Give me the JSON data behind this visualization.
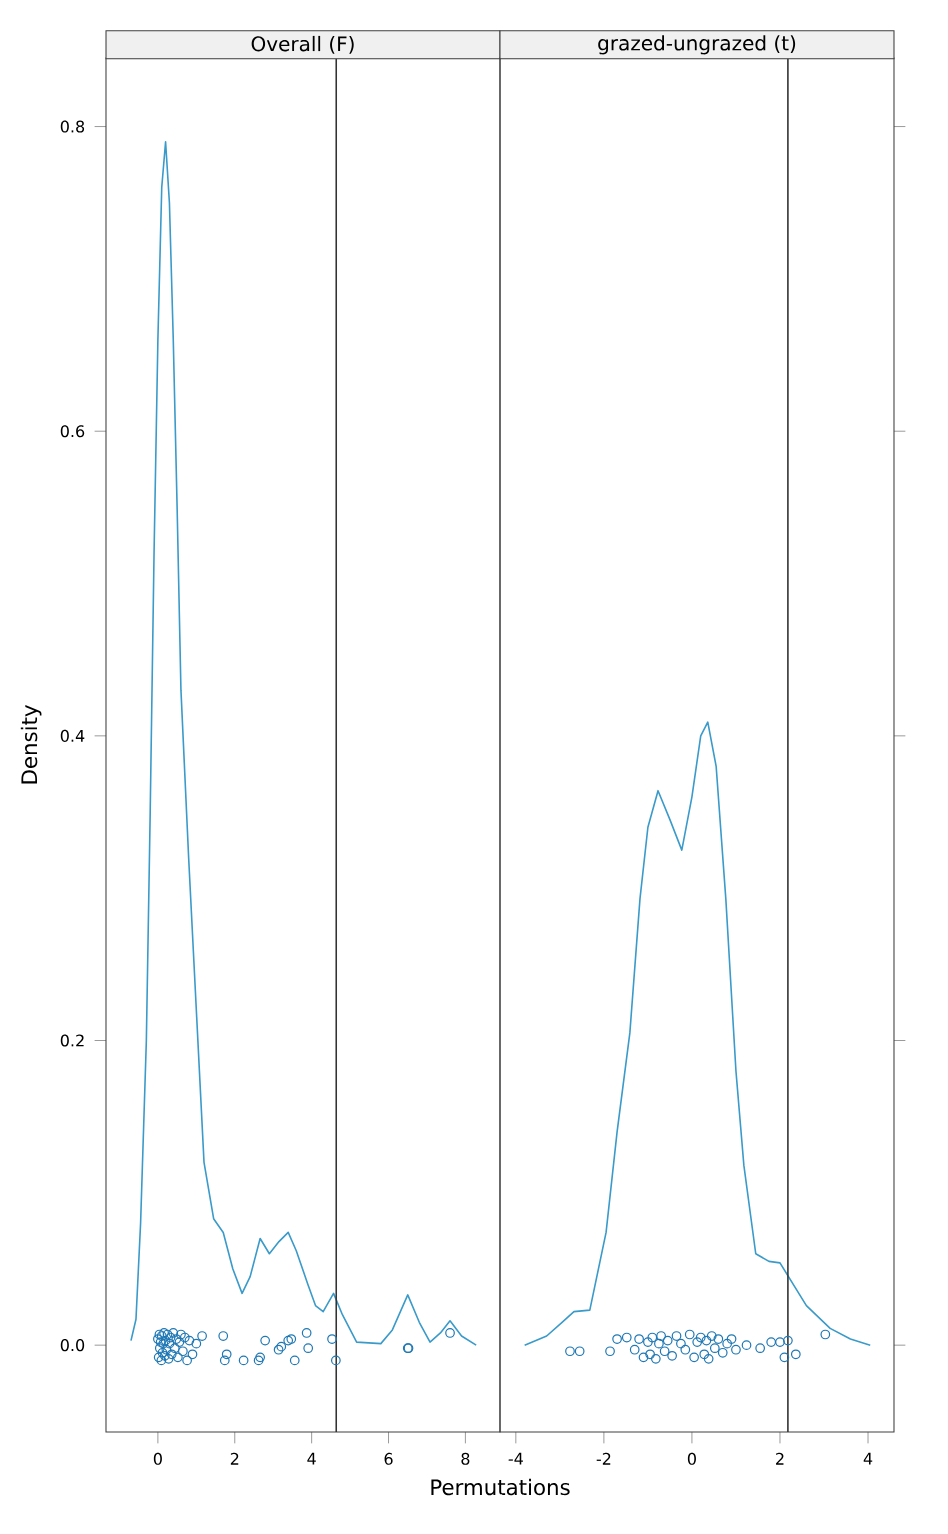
{
  "chart_data": [
    {
      "type": "line",
      "title": "Overall (F)",
      "xlabel": "Permutations",
      "ylabel": "Density",
      "xlim": [
        -1.35,
        8.9
      ],
      "ylim": [
        -0.057,
        0.845
      ],
      "xticks": [
        0,
        2,
        4,
        6,
        8
      ],
      "yticks": [
        {
          "value": 0,
          "label": "0.0"
        },
        {
          "value": 0.2,
          "label": "0.2"
        },
        {
          "value": 0.4,
          "label": "0.4"
        },
        {
          "value": 0.6,
          "label": "0.6"
        },
        {
          "value": 0.8,
          "label": "0.8"
        }
      ],
      "ref_lines": [
        {
          "axis": "x",
          "value": 4.64,
          "color": "#333333"
        }
      ],
      "series": [
        {
          "color": "#3a9ac9",
          "x": [
            -0.7,
            -0.57,
            -0.45,
            -0.3,
            -0.2,
            -0.1,
            0.0,
            0.1,
            0.2,
            0.3,
            0.4,
            0.5,
            0.6,
            0.8,
            1.04,
            1.2,
            1.45,
            1.7,
            1.95,
            2.19,
            2.4,
            2.66,
            2.9,
            3.15,
            3.39,
            3.6,
            3.9,
            4.1,
            4.3,
            4.57,
            4.8,
            5.17,
            5.8,
            6.1,
            6.5,
            6.8,
            7.08,
            7.35,
            7.6,
            7.9,
            8.28
          ],
          "values": [
            0.003,
            0.017,
            0.08,
            0.2,
            0.35,
            0.52,
            0.66,
            0.76,
            0.79,
            0.75,
            0.66,
            0.55,
            0.43,
            0.32,
            0.2,
            0.12,
            0.083,
            0.074,
            0.05,
            0.034,
            0.045,
            0.07,
            0.06,
            0.068,
            0.074,
            0.062,
            0.04,
            0.026,
            0.022,
            0.034,
            0.02,
            0.002,
            0.001,
            0.01,
            0.033,
            0.015,
            0.002,
            0.008,
            0.016,
            0.006,
            0.0
          ]
        },
        {
          "type": "scatter",
          "color": "#1f78b4",
          "marker": "circle",
          "x": [
            0.0,
            0.02,
            0.04,
            0.05,
            0.07,
            0.09,
            0.1,
            0.12,
            0.14,
            0.16,
            0.18,
            0.2,
            0.22,
            0.25,
            0.28,
            0.3,
            0.33,
            0.36,
            0.4,
            0.44,
            0.48,
            0.52,
            0.56,
            0.6,
            0.65,
            0.7,
            0.76,
            0.82,
            0.9,
            1.0,
            1.15,
            1.7,
            1.79,
            1.74,
            2.23,
            2.66,
            2.62,
            2.79,
            3.14,
            3.21,
            3.39,
            3.47,
            3.56,
            3.87,
            3.91,
            4.53,
            4.63,
            6.5,
            6.52,
            7.6
          ],
          "values": [
            0.004,
            -0.008,
            0.007,
            -0.002,
            0.002,
            -0.01,
            0.006,
            -0.005,
            0.001,
            0.008,
            -0.007,
            0.003,
            -0.003,
            0.007,
            -0.009,
            0.001,
            0.005,
            -0.006,
            0.008,
            -0.002,
            0.004,
            -0.008,
            0.002,
            0.007,
            -0.004,
            0.005,
            -0.01,
            0.003,
            -0.006,
            0.001,
            0.006,
            0.006,
            -0.006,
            -0.01,
            -0.01,
            -0.008,
            -0.01,
            0.003,
            -0.003,
            -0.001,
            0.003,
            0.004,
            -0.01,
            0.008,
            -0.002,
            0.004,
            -0.01,
            -0.002,
            -0.002,
            0.008
          ]
        }
      ]
    },
    {
      "type": "line",
      "title": "grazed-ungrazed (t)",
      "xlim": [
        -4.36,
        4.59
      ],
      "ylim": [
        -0.057,
        0.845
      ],
      "xticks": [
        -4,
        -2,
        0,
        2,
        4
      ],
      "yticks": [
        {
          "value": 0,
          "label": null
        },
        {
          "value": 0.2,
          "label": null
        },
        {
          "value": 0.4,
          "label": null
        },
        {
          "value": 0.6,
          "label": null
        },
        {
          "value": 0.8,
          "label": null
        }
      ],
      "tick_labels": "x",
      "ref_lines": [
        {
          "axis": "x",
          "value": 2.18,
          "color": "#333333"
        }
      ],
      "series": [
        {
          "color": "#3a9ac9",
          "x": [
            -3.8,
            -3.3,
            -2.95,
            -2.68,
            -2.32,
            -1.95,
            -1.7,
            -1.41,
            -1.18,
            -1.0,
            -0.77,
            -0.5,
            -0.23,
            0.0,
            0.2,
            0.36,
            0.55,
            0.77,
            1.0,
            1.18,
            1.45,
            1.75,
            2.0,
            2.3,
            2.6,
            3.14,
            3.6,
            4.05
          ],
          "values": [
            0.0,
            0.006,
            0.015,
            0.022,
            0.023,
            0.074,
            0.14,
            0.205,
            0.293,
            0.34,
            0.364,
            0.345,
            0.325,
            0.36,
            0.4,
            0.409,
            0.38,
            0.293,
            0.18,
            0.118,
            0.06,
            0.055,
            0.054,
            0.04,
            0.026,
            0.011,
            0.004,
            0.0
          ]
        },
        {
          "type": "scatter",
          "color": "#1f78b4",
          "marker": "circle",
          "x": [
            -2.77,
            -2.55,
            -1.86,
            -1.7,
            -1.48,
            -1.3,
            -1.2,
            -1.1,
            -1.0,
            -0.95,
            -0.9,
            -0.82,
            -0.75,
            -0.7,
            -0.62,
            -0.55,
            -0.45,
            -0.35,
            -0.25,
            -0.15,
            -0.05,
            0.05,
            0.12,
            0.2,
            0.28,
            0.33,
            0.38,
            0.45,
            0.52,
            0.6,
            0.7,
            0.8,
            0.9,
            1.0,
            1.24,
            1.55,
            1.8,
            2.0,
            2.18,
            2.1,
            2.36,
            3.03
          ],
          "values": [
            -0.004,
            -0.004,
            -0.004,
            0.004,
            0.005,
            -0.003,
            0.004,
            -0.008,
            0.002,
            -0.006,
            0.005,
            -0.009,
            0.001,
            0.006,
            -0.004,
            0.003,
            -0.007,
            0.006,
            0.001,
            -0.003,
            0.007,
            -0.008,
            0.002,
            0.005,
            -0.006,
            0.003,
            -0.009,
            0.006,
            -0.002,
            0.004,
            -0.005,
            0.001,
            0.004,
            -0.003,
            0.0,
            -0.002,
            0.002,
            0.002,
            0.003,
            -0.008,
            -0.006,
            0.007
          ]
        }
      ]
    }
  ]
}
